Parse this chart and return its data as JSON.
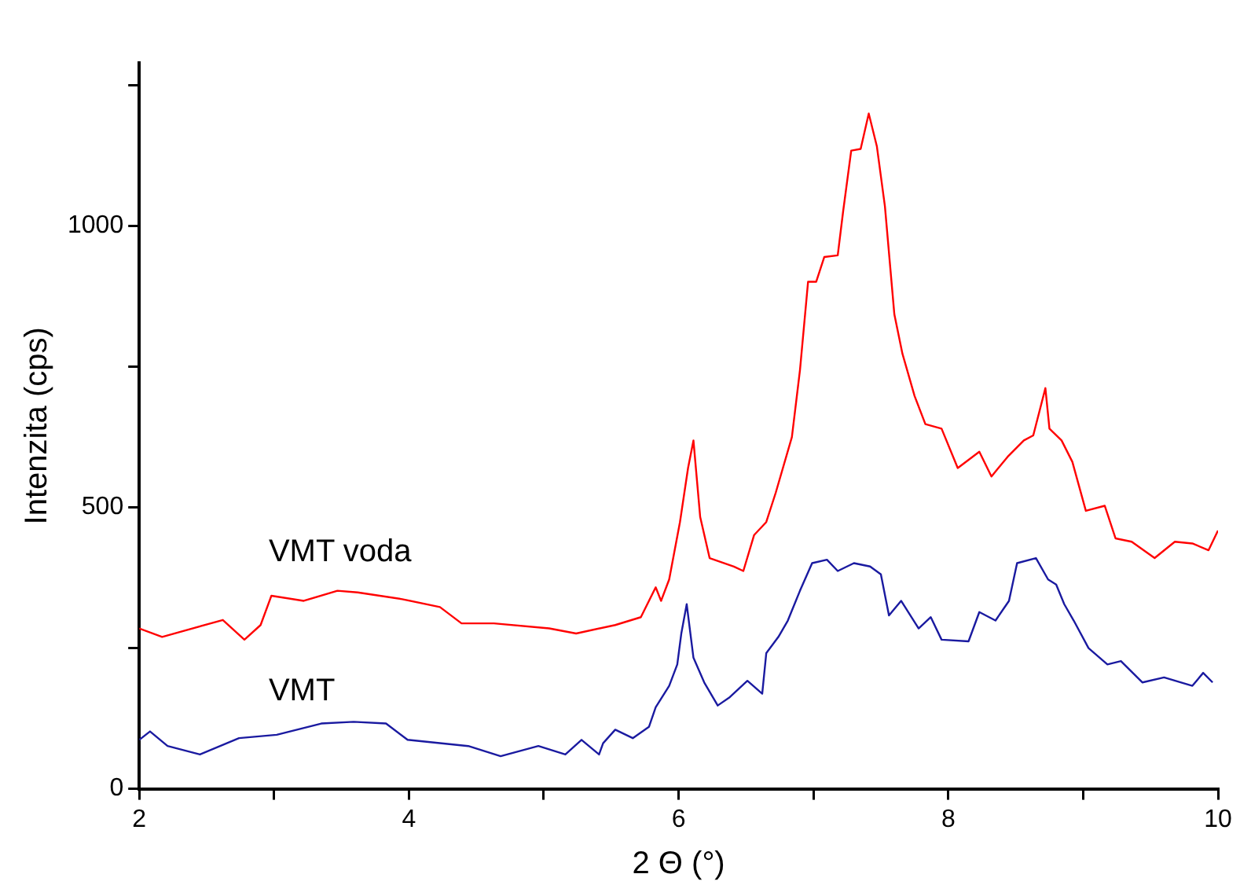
{
  "chart_data": {
    "type": "line",
    "xlabel": "2 Θ (°)",
    "ylabel": "Intenzita (cps)",
    "xlim": [
      2,
      10
    ],
    "xticks": [
      2,
      {
        "value": 3,
        "label": null
      },
      4,
      {
        "value": 5,
        "label": null
      },
      6,
      {
        "value": 7,
        "label": null
      },
      8,
      {
        "value": 9,
        "label": null
      },
      10
    ],
    "ylim": [
      0,
      1290
    ],
    "yticks": [
      0,
      {
        "value": 250,
        "label": null
      },
      500,
      {
        "value": 750,
        "label": null
      },
      1000,
      {
        "value": 1250,
        "label": null
      }
    ],
    "grid": false,
    "legend": false,
    "marker": "none",
    "line_style": "solid",
    "series": [
      {
        "name": "VMT voda",
        "color": "#ff0000",
        "x": [
          2.0,
          2.17,
          2.62,
          2.78,
          2.9,
          2.98,
          3.22,
          3.47,
          3.62,
          3.95,
          4.23,
          4.39,
          4.63,
          5.04,
          5.24,
          5.53,
          5.72,
          5.83,
          5.87,
          5.93,
          6.01,
          6.07,
          6.11,
          6.16,
          6.23,
          6.41,
          6.48,
          6.56,
          6.65,
          6.72,
          6.84,
          6.9,
          6.96,
          7.02,
          7.08,
          7.18,
          7.22,
          7.28,
          7.35,
          7.41,
          7.47,
          7.53,
          7.6,
          7.66,
          7.75,
          7.83,
          7.95,
          8.07,
          8.23,
          8.32,
          8.44,
          8.56,
          8.63,
          8.72,
          8.75,
          8.84,
          8.92,
          9.02,
          9.16,
          9.24,
          9.36,
          9.53,
          9.68,
          9.81,
          9.93,
          10.0
        ],
        "values": [
          285,
          270,
          300,
          265,
          291,
          343,
          334,
          352,
          349,
          337,
          323,
          294,
          294,
          285,
          276,
          291,
          305,
          358,
          334,
          372,
          474,
          570,
          619,
          483,
          410,
          395,
          387,
          451,
          474,
          526,
          625,
          744,
          901,
          901,
          945,
          948,
          1026,
          1134,
          1137,
          1200,
          1142,
          1035,
          843,
          773,
          698,
          648,
          640,
          570,
          599,
          555,
          590,
          619,
          628,
          712,
          640,
          619,
          581,
          494,
          503,
          445,
          439,
          410,
          439,
          436,
          424,
          459
        ]
      },
      {
        "name": "VMT",
        "color": "#1a1aa0",
        "x": [
          2.0,
          2.08,
          2.21,
          2.45,
          2.74,
          3.02,
          3.35,
          3.59,
          3.83,
          3.99,
          4.44,
          4.68,
          4.96,
          5.16,
          5.28,
          5.41,
          5.44,
          5.53,
          5.66,
          5.78,
          5.83,
          5.93,
          5.99,
          6.02,
          6.06,
          6.11,
          6.19,
          6.29,
          6.38,
          6.51,
          6.62,
          6.65,
          6.74,
          6.81,
          6.9,
          6.99,
          7.1,
          7.18,
          7.3,
          7.42,
          7.5,
          7.56,
          7.65,
          7.78,
          7.87,
          7.95,
          8.15,
          8.23,
          8.35,
          8.45,
          8.51,
          8.65,
          8.74,
          8.8,
          8.86,
          8.93,
          9.04,
          9.18,
          9.28,
          9.44,
          9.6,
          9.81,
          9.89,
          9.96
        ],
        "values": [
          87,
          102,
          76,
          61,
          90,
          96,
          116,
          119,
          116,
          87,
          76,
          58,
          76,
          61,
          87,
          61,
          81,
          105,
          90,
          110,
          145,
          183,
          221,
          276,
          328,
          233,
          189,
          148,
          163,
          192,
          169,
          241,
          270,
          299,
          352,
          401,
          407,
          387,
          401,
          395,
          381,
          308,
          334,
          285,
          305,
          265,
          262,
          314,
          299,
          334,
          401,
          410,
          372,
          363,
          328,
          299,
          250,
          221,
          227,
          189,
          198,
          183,
          206,
          189
        ]
      }
    ]
  }
}
